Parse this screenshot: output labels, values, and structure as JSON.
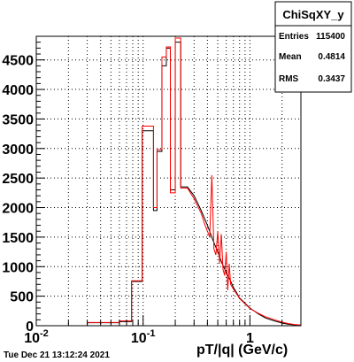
{
  "stats_box": {
    "title": "ChiSqXY_y",
    "rows": [
      {
        "label": "Entries",
        "value": "115400"
      },
      {
        "label": "Mean",
        "value": "0.4814"
      },
      {
        "label": "RMS",
        "value": "0.3437"
      }
    ]
  },
  "timestamp": "Tue Dec 21 13:12:24 2021",
  "colors": {
    "series_black": "#000000",
    "series_red": "#ff0000",
    "grid": "#000000"
  },
  "chart_data": {
    "type": "line",
    "title": "",
    "xlabel": "pT/|q| (GeV/c)",
    "ylabel": "",
    "x_scale": "log",
    "xlim": [
      0.01,
      3.0
    ],
    "ylim": [
      0,
      4900
    ],
    "grid": true,
    "x_major_ticks": [
      {
        "value": 0.01,
        "label": "10",
        "exponent": "-2"
      },
      {
        "value": 0.1,
        "label": "10",
        "exponent": "-1"
      },
      {
        "value": 1,
        "label": "1",
        "exponent": ""
      }
    ],
    "y_ticks": [
      0,
      500,
      1000,
      1500,
      2000,
      2500,
      3000,
      3500,
      4000,
      4500
    ],
    "series": [
      {
        "color": "#000000",
        "points": [
          [
            0.01,
            0
          ],
          [
            0.03,
            0
          ],
          [
            0.03,
            50
          ],
          [
            0.06,
            50
          ],
          [
            0.06,
            70
          ],
          [
            0.078,
            70
          ],
          [
            0.078,
            750
          ],
          [
            0.098,
            750
          ],
          [
            0.098,
            3300
          ],
          [
            0.125,
            3300
          ],
          [
            0.125,
            1950
          ],
          [
            0.135,
            1950
          ],
          [
            0.135,
            2950
          ],
          [
            0.15,
            2950
          ],
          [
            0.15,
            4400
          ],
          [
            0.165,
            4400
          ],
          [
            0.165,
            4700
          ],
          [
            0.18,
            4700
          ],
          [
            0.18,
            2300
          ],
          [
            0.2,
            2300
          ],
          [
            0.2,
            4800
          ],
          [
            0.225,
            4800
          ],
          [
            0.225,
            2350
          ],
          [
            0.26,
            2350
          ],
          [
            0.3,
            2200
          ],
          [
            0.35,
            1950
          ],
          [
            0.4,
            1700
          ],
          [
            0.45,
            1450
          ],
          [
            0.5,
            1250
          ],
          [
            0.55,
            1050
          ],
          [
            0.6,
            900
          ],
          [
            0.65,
            780
          ],
          [
            0.7,
            650
          ],
          [
            0.75,
            560
          ],
          [
            0.8,
            470
          ],
          [
            0.9,
            380
          ],
          [
            1.0,
            300
          ],
          [
            1.2,
            200
          ],
          [
            1.4,
            130
          ],
          [
            1.7,
            80
          ],
          [
            2.0,
            45
          ],
          [
            2.3,
            25
          ],
          [
            2.6,
            15
          ],
          [
            3.0,
            10
          ]
        ]
      },
      {
        "color": "#ff0000",
        "points": [
          [
            0.01,
            0
          ],
          [
            0.03,
            0
          ],
          [
            0.03,
            55
          ],
          [
            0.06,
            55
          ],
          [
            0.06,
            80
          ],
          [
            0.078,
            80
          ],
          [
            0.078,
            760
          ],
          [
            0.098,
            760
          ],
          [
            0.098,
            3380
          ],
          [
            0.125,
            3380
          ],
          [
            0.125,
            2000
          ],
          [
            0.135,
            2000
          ],
          [
            0.135,
            2980
          ],
          [
            0.15,
            2980
          ],
          [
            0.15,
            4550
          ],
          [
            0.165,
            4550
          ],
          [
            0.165,
            4720
          ],
          [
            0.18,
            4720
          ],
          [
            0.18,
            2250
          ],
          [
            0.2,
            2250
          ],
          [
            0.2,
            4870
          ],
          [
            0.225,
            4870
          ],
          [
            0.225,
            2330
          ],
          [
            0.26,
            2330
          ],
          [
            0.3,
            2150
          ],
          [
            0.35,
            1900
          ],
          [
            0.38,
            1700
          ],
          [
            0.4,
            1600
          ],
          [
            0.42,
            1500
          ],
          [
            0.44,
            2550
          ],
          [
            0.46,
            1300
          ],
          [
            0.48,
            1200
          ],
          [
            0.5,
            1600
          ],
          [
            0.52,
            1050
          ],
          [
            0.54,
            1550
          ],
          [
            0.56,
            950
          ],
          [
            0.58,
            850
          ],
          [
            0.6,
            1250
          ],
          [
            0.62,
            600
          ],
          [
            0.64,
            1050
          ],
          [
            0.66,
            700
          ],
          [
            0.7,
            620
          ],
          [
            0.75,
            540
          ],
          [
            0.8,
            460
          ],
          [
            0.9,
            370
          ],
          [
            1.0,
            290
          ],
          [
            1.2,
            210
          ],
          [
            1.4,
            150
          ],
          [
            1.7,
            100
          ],
          [
            2.0,
            60
          ],
          [
            2.3,
            35
          ],
          [
            2.6,
            20
          ],
          [
            3.0,
            12
          ]
        ]
      }
    ]
  }
}
